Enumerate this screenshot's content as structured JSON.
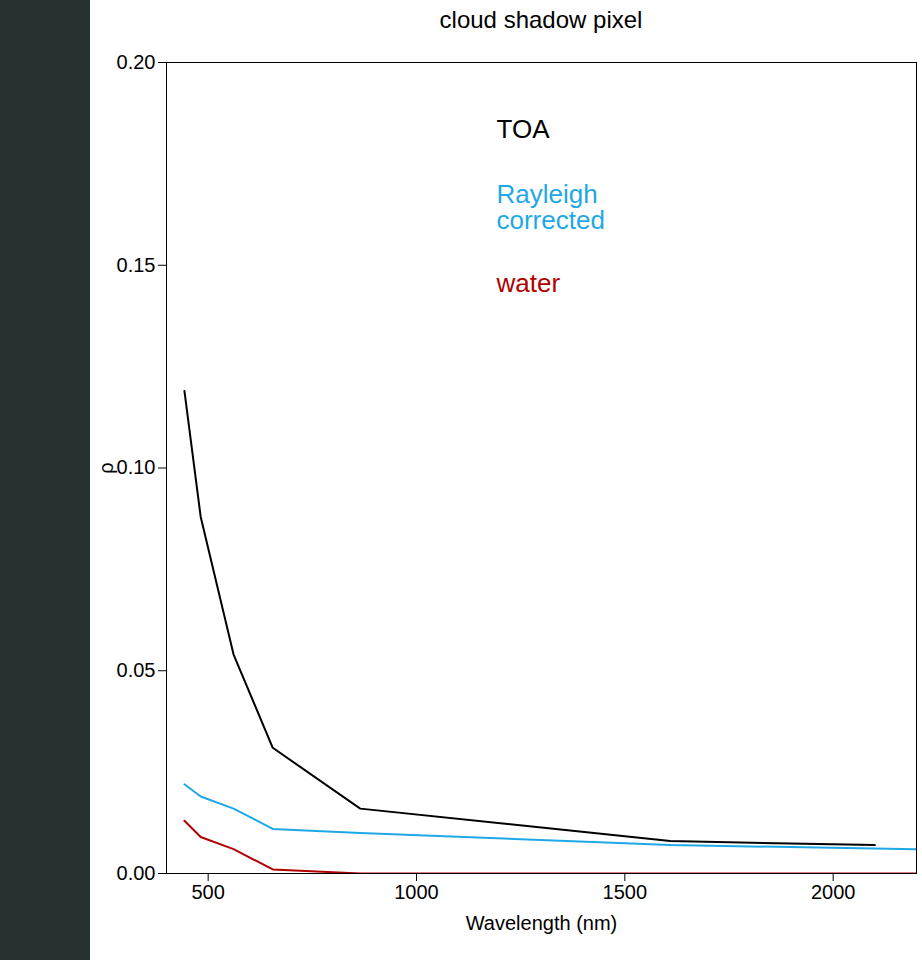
{
  "chart_data": {
    "type": "line",
    "title": "cloud shadow pixel",
    "x_label": "Wavelength (nm)",
    "y_label": "ρ",
    "xlim": [
      400,
      2200
    ],
    "xticks": [
      500,
      1000,
      1500,
      2000
    ],
    "ylim": [
      0,
      0.2
    ],
    "yticks": [
      {
        "value": 0,
        "label": "0.00"
      },
      {
        "value": 0.05,
        "label": "0.05"
      },
      {
        "value": 0.1,
        "label": "0.10"
      },
      {
        "value": 0.15,
        "label": "0.15"
      },
      {
        "value": 0.2,
        "label": "0.20"
      }
    ],
    "grid": false,
    "series": [
      {
        "name": "TOA",
        "color": "#000000",
        "x": [
          443,
          482,
          561,
          655,
          865,
          1609,
          2100
        ],
        "values": [
          0.119,
          0.088,
          0.054,
          0.031,
          0.016,
          0.008,
          0.007
        ]
      },
      {
        "name": "Rayleigh corrected",
        "color": "#1fa8e6",
        "x": [
          443,
          482,
          561,
          655,
          865,
          1609,
          2201
        ],
        "values": [
          0.022,
          0.019,
          0.016,
          0.011,
          0.01,
          0.007,
          0.006
        ]
      },
      {
        "name": "water",
        "color": "#b00000",
        "x": [
          443,
          482,
          561,
          655,
          865,
          1609,
          2201
        ],
        "values": [
          0.013,
          0.009,
          0.006,
          0.001,
          0.0,
          0.0,
          0.0
        ]
      }
    ]
  }
}
